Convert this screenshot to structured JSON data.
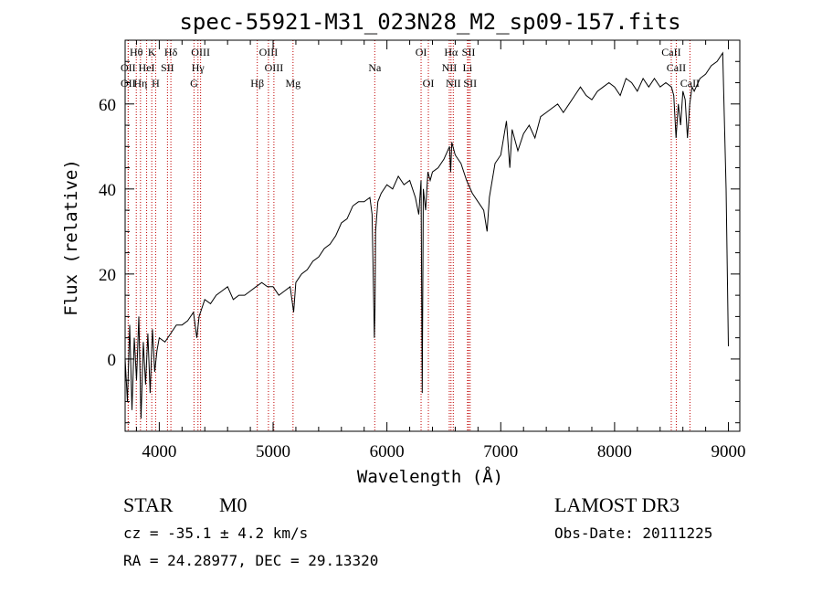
{
  "chart_data": {
    "type": "line",
    "title": "spec-55921-M31_023N28_M2_sp09-157.fits",
    "xlabel": "Wavelength (Å)",
    "ylabel": "Flux (relative)",
    "xlim": [
      3700,
      9100
    ],
    "ylim": [
      -17,
      75
    ],
    "x_ticks": [
      4000,
      5000,
      6000,
      7000,
      8000,
      9000
    ],
    "x_tick_labels": [
      "4000",
      "5000",
      "6000",
      "7000",
      "8000",
      "9000"
    ],
    "y_ticks": [
      0,
      20,
      40,
      60
    ],
    "y_tick_labels": [
      "0",
      "20",
      "40",
      "60"
    ],
    "series": [
      {
        "name": "spectrum",
        "x": [
          3700,
          3720,
          3740,
          3760,
          3780,
          3800,
          3820,
          3840,
          3860,
          3880,
          3900,
          3920,
          3940,
          3960,
          3980,
          4000,
          4050,
          4100,
          4150,
          4200,
          4250,
          4300,
          4330,
          4350,
          4400,
          4450,
          4500,
          4550,
          4600,
          4650,
          4700,
          4750,
          4800,
          4850,
          4900,
          4950,
          5000,
          5050,
          5100,
          5150,
          5180,
          5200,
          5250,
          5300,
          5350,
          5400,
          5450,
          5500,
          5550,
          5600,
          5650,
          5700,
          5750,
          5800,
          5850,
          5870,
          5890,
          5895,
          5900,
          5920,
          5950,
          6000,
          6050,
          6100,
          6150,
          6200,
          6250,
          6280,
          6300,
          6310,
          6320,
          6340,
          6360,
          6380,
          6400,
          6450,
          6500,
          6550,
          6560,
          6570,
          6600,
          6650,
          6700,
          6750,
          6800,
          6850,
          6880,
          6900,
          6950,
          7000,
          7050,
          7080,
          7100,
          7150,
          7200,
          7250,
          7300,
          7350,
          7400,
          7450,
          7500,
          7550,
          7600,
          7650,
          7700,
          7750,
          7800,
          7850,
          7900,
          7950,
          8000,
          8050,
          8100,
          8150,
          8200,
          8250,
          8300,
          8350,
          8400,
          8450,
          8500,
          8520,
          8540,
          8560,
          8580,
          8600,
          8620,
          8640,
          8660,
          8680,
          8700,
          8750,
          8800,
          8850,
          8900,
          8950,
          8980,
          9000
        ],
        "y": [
          0,
          -10,
          8,
          -12,
          5,
          -5,
          10,
          -14,
          4,
          -6,
          6,
          -8,
          7,
          -3,
          2,
          5,
          4,
          6,
          8,
          8,
          9,
          11,
          5,
          10,
          14,
          13,
          15,
          16,
          17,
          14,
          15,
          15,
          16,
          17,
          18,
          17,
          17,
          15,
          16,
          17,
          11,
          18,
          20,
          21,
          23,
          24,
          26,
          27,
          29,
          32,
          33,
          36,
          37,
          37,
          38,
          34,
          5,
          12,
          30,
          37,
          39,
          41,
          40,
          43,
          41,
          42,
          38,
          34,
          42,
          -8,
          40,
          35,
          44,
          42,
          44,
          45,
          47,
          50,
          44,
          51,
          48,
          46,
          42,
          39,
          37,
          35,
          30,
          38,
          46,
          48,
          56,
          45,
          54,
          49,
          53,
          55,
          52,
          57,
          58,
          59,
          60,
          58,
          60,
          62,
          64,
          62,
          61,
          63,
          64,
          65,
          64,
          62,
          66,
          65,
          63,
          66,
          64,
          66,
          64,
          65,
          64,
          62,
          52,
          60,
          55,
          63,
          61,
          52,
          60,
          64,
          63,
          66,
          67,
          69,
          70,
          72,
          40,
          3
        ]
      }
    ],
    "line_markers": [
      {
        "label": "Hθ",
        "wavelength": 3798,
        "row": 0
      },
      {
        "label": "K",
        "wavelength": 3934,
        "row": 0
      },
      {
        "label": "Hδ",
        "wavelength": 4102,
        "row": 0
      },
      {
        "label": "OIII",
        "wavelength": 4363,
        "row": 0
      },
      {
        "label": "OIII",
        "wavelength": 4959,
        "row": 0
      },
      {
        "label": "OI",
        "wavelength": 6300,
        "row": 0
      },
      {
        "label": "Hα",
        "wavelength": 6563,
        "row": 0
      },
      {
        "label": "SII",
        "wavelength": 6717,
        "row": 0
      },
      {
        "label": "CaII",
        "wavelength": 8498,
        "row": 0
      },
      {
        "label": "OII",
        "wavelength": 3727,
        "row": 1
      },
      {
        "label": "HeI",
        "wavelength": 3889,
        "row": 1
      },
      {
        "label": "SII",
        "wavelength": 4072,
        "row": 1
      },
      {
        "label": "Hγ",
        "wavelength": 4340,
        "row": 1
      },
      {
        "label": "OIII",
        "wavelength": 5007,
        "row": 1
      },
      {
        "label": "Na",
        "wavelength": 5893,
        "row": 1
      },
      {
        "label": "NII",
        "wavelength": 6548,
        "row": 1
      },
      {
        "label": "Li",
        "wavelength": 6708,
        "row": 1
      },
      {
        "label": "CaII",
        "wavelength": 8542,
        "row": 1
      },
      {
        "label": "OII",
        "wavelength": 3727,
        "row": 2
      },
      {
        "label": "Hη",
        "wavelength": 3835,
        "row": 2
      },
      {
        "label": "H",
        "wavelength": 3968,
        "row": 2
      },
      {
        "label": "G",
        "wavelength": 4305,
        "row": 2
      },
      {
        "label": "Hβ",
        "wavelength": 4861,
        "row": 2
      },
      {
        "label": "Mg",
        "wavelength": 5175,
        "row": 2
      },
      {
        "label": "OI",
        "wavelength": 6364,
        "row": 2
      },
      {
        "label": "NII",
        "wavelength": 6583,
        "row": 2
      },
      {
        "label": "SII",
        "wavelength": 6731,
        "row": 2
      },
      {
        "label": "CaII",
        "wavelength": 8662,
        "row": 2
      }
    ],
    "marker_color": "#c00000"
  },
  "info": {
    "class_label": "STAR",
    "subclass_label": "M0",
    "survey_label": "LAMOST DR3",
    "velocity_text": "cz = -35.1 ± 4.2 km/s",
    "obsdate_text": "Obs-Date: 20111225",
    "coords_text": "RA =  24.28977, DEC =  29.13320"
  }
}
